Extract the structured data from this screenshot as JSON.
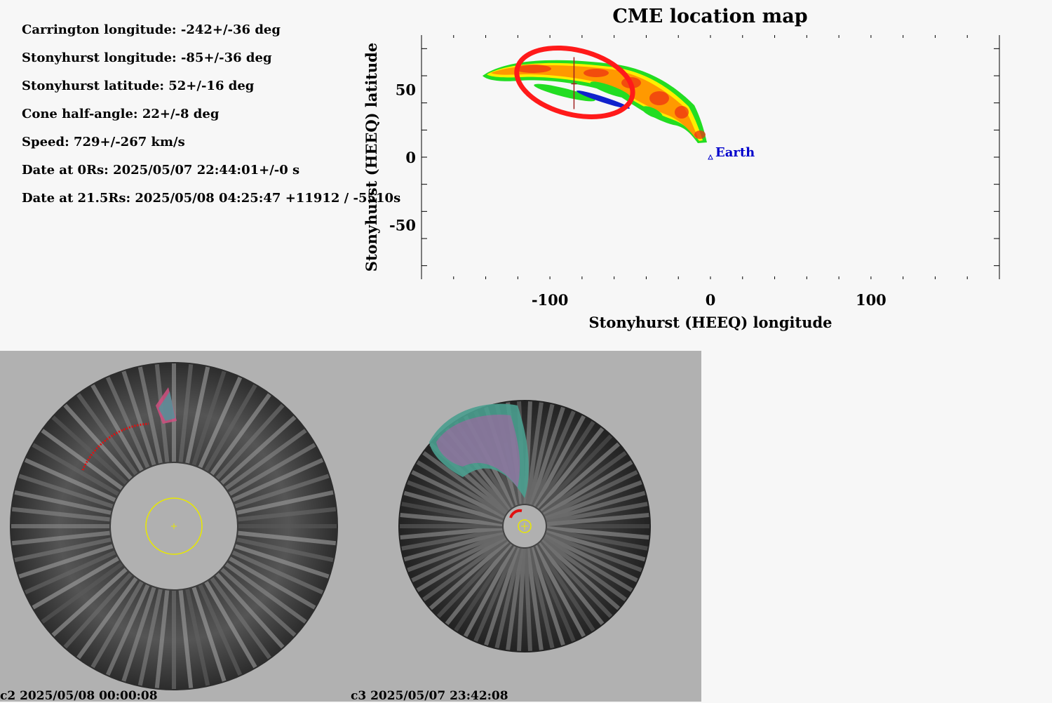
{
  "info": {
    "lines": [
      "Carrington longitude: -242+/-36 deg",
      "Stonyhurst longitude: -85+/-36 deg",
      "Stonyhurst latitude: 52+/-16 deg",
      "Cone half-angle: 22+/-8 deg",
      "Speed: 729+/-267 km/s",
      "Date at 0Rs: 2025/05/07 22:44:01+/-0 s",
      "Date at 21.5Rs: 2025/05/08 04:25:47 +11912 / -5510s"
    ]
  },
  "chart_data": {
    "type": "heatmap",
    "title": "CME location map",
    "xlabel": "Stonyhurst (HEEQ) longitude",
    "ylabel": "Stonyhurst (HEEQ) latitude",
    "xlim": [
      -180,
      180
    ],
    "ylim": [
      -90,
      90
    ],
    "xticks": [
      -100,
      0,
      100
    ],
    "yticks": [
      -50,
      0,
      50
    ],
    "cme_center": {
      "lon": -85,
      "lat": 52,
      "lon_err": 36,
      "lat_err": 16
    },
    "earth": {
      "lon": 0,
      "lat": 0,
      "label": "Earth"
    },
    "colors": {
      "ellipse": "#ff1a1a",
      "earth": "#0000cc",
      "contour_red": "#ee3311",
      "contour_orange": "#ff9900",
      "contour_yellow": "#ffee00",
      "contour_green": "#22dd22",
      "contour_blue": "#1122cc"
    }
  },
  "coronagraphs": {
    "c2_label": "c2 2025/05/08 00:00:08",
    "c3_label": "c3 2025/05/07 23:42:08"
  }
}
